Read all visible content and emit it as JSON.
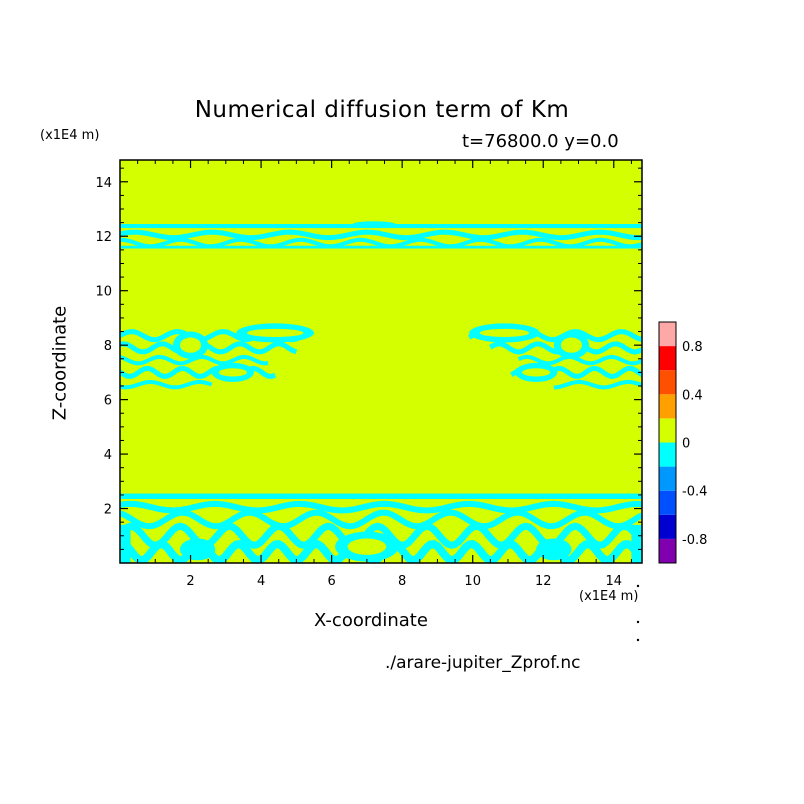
{
  "chart_data": {
    "type": "heatmap",
    "title": "Numerical diffusion term of Km",
    "subtitle": "t=76800.0 y=0.0",
    "xlabel": "X-coordinate",
    "ylabel": "Z-coordinate",
    "x_unit": "(x1E4 m)",
    "y_unit": "(x1E4 m)",
    "xlim": [
      0,
      14.8
    ],
    "ylim": [
      0,
      14.8
    ],
    "x_ticks": [
      "2",
      "4",
      "6",
      "8",
      "10",
      "12",
      "14"
    ],
    "x_tick_values": [
      2,
      4,
      6,
      8,
      10,
      12,
      14
    ],
    "y_ticks": [
      "2",
      "4",
      "6",
      "8",
      "10",
      "12",
      "14"
    ],
    "y_tick_values": [
      2,
      4,
      6,
      8,
      10,
      12,
      14
    ],
    "background_level": "0 to 0.2",
    "background_color": "#d4ff00",
    "colorbar": {
      "levels": [
        -1.0,
        -0.8,
        -0.6,
        -0.4,
        -0.2,
        0,
        0.2,
        0.4,
        0.6,
        0.8,
        1.0
      ],
      "colors": [
        "#8000b0",
        "#0000d0",
        "#0050ff",
        "#0098ff",
        "#00ffff",
        "#d4ff00",
        "#ffa000",
        "#ff5000",
        "#ff0000",
        "#ffa8a8"
      ],
      "tick_labels": [
        "-0.8",
        "-0.4",
        "0",
        "0.4",
        "0.8"
      ],
      "tick_values": [
        -0.8,
        -0.4,
        0,
        0.4,
        0.8
      ]
    },
    "features": [
      {
        "name": "upper-band",
        "level": "-0.2 to 0",
        "color": "#00ffff",
        "x": [
          0,
          14.8
        ],
        "z": [
          11.5,
          12.6
        ]
      },
      {
        "name": "left-cells",
        "level": "-0.2 to 0",
        "color": "#00ffff",
        "x": [
          0,
          5.5
        ],
        "z": [
          6.3,
          8.8
        ]
      },
      {
        "name": "right-cells",
        "level": "-0.2 to 0",
        "color": "#00ffff",
        "x": [
          9.8,
          14.8
        ],
        "z": [
          6.3,
          8.8
        ]
      },
      {
        "name": "lower-band",
        "level": "-0.2 to 0",
        "color": "#00ffff",
        "x": [
          0,
          14.8
        ],
        "z": [
          0,
          2.6
        ]
      }
    ]
  },
  "source_file": "./arare-jupiter_Zprof.nc"
}
